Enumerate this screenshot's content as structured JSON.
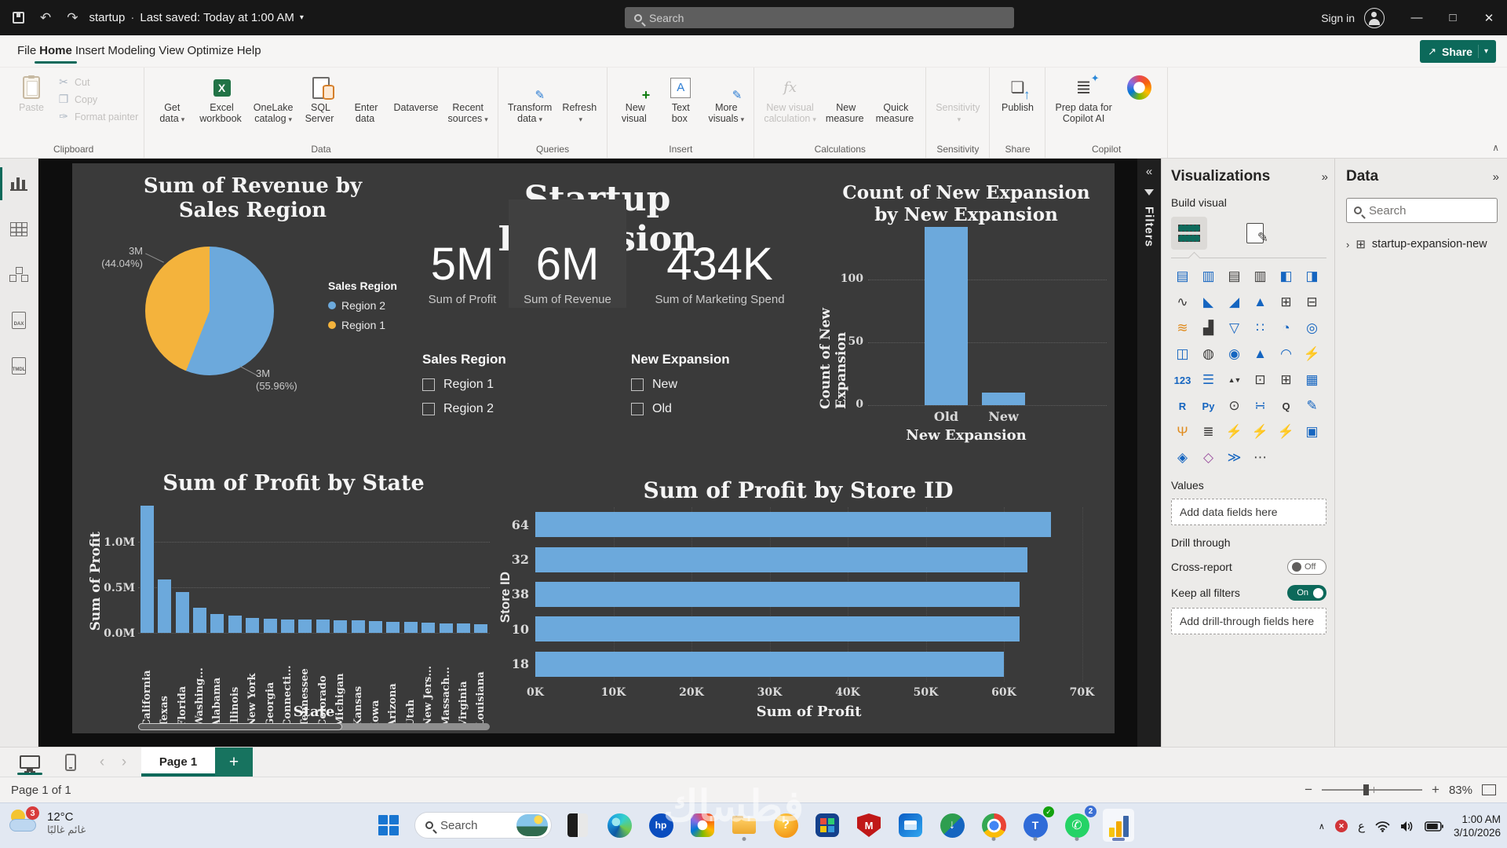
{
  "icons": {
    "undo": "↶",
    "redo": "↷",
    "caret_down": "▾",
    "minimize": "—",
    "maximize": "□",
    "close": "✕",
    "collapse_left": "«",
    "collapse_right": "»",
    "chevron_up": "∧",
    "back": "‹",
    "forward": "›",
    "share_arrow": "↗",
    "tree_chevron": "›",
    "table_glyph": "⊞",
    "tray_chevron": "∧",
    "whatsapp_phone": "✆",
    "teams_check": "✓",
    "idm_arrow": "↓",
    "question": "?",
    "hp": "hp",
    "teams_letter": "T",
    "mcafee_letter": "M",
    "plus": "+"
  },
  "titlebar": {
    "doc_title": "startup",
    "saved_status": "Last saved: Today at 1:00 AM",
    "search_placeholder": "Search",
    "sign_in": "Sign in"
  },
  "menubar": {
    "tabs": [
      {
        "t": "File",
        "a": ""
      },
      {
        "t": "Home",
        "a": "1"
      },
      {
        "t": "Insert",
        "a": ""
      },
      {
        "t": "Modeling",
        "a": ""
      },
      {
        "t": "View",
        "a": ""
      },
      {
        "t": "Optimize",
        "a": ""
      },
      {
        "t": "Help",
        "a": ""
      }
    ],
    "share_label": "Share"
  },
  "ribbon": {
    "clipboard": {
      "group_label": "Clipboard",
      "paste_label": "Paste",
      "items": [
        {
          "g": "✂",
          "label": "Cut"
        },
        {
          "g": "❐",
          "label": "Copy"
        },
        {
          "g": "✑",
          "label": "Format painter"
        }
      ]
    },
    "groups": [
      {
        "label": "Data",
        "buttons": [
          {
            "ic": "getdata",
            "g": "⛁",
            "l1": "Get",
            "l2": "data",
            "caret_g": "▾",
            "dis": ""
          },
          {
            "ic": "excel",
            "g": "",
            "l1": "Excel",
            "l2": "workbook",
            "caret_g": "",
            "dis": ""
          },
          {
            "ic": "onelake",
            "g": "◍",
            "l1": "OneLake",
            "l2": "catalog",
            "caret_g": "▾",
            "dis": ""
          },
          {
            "ic": "sql",
            "g": "",
            "l1": "SQL",
            "l2": "Server",
            "caret_g": "",
            "dis": ""
          },
          {
            "ic": "enterdata",
            "g": "⊞",
            "l1": "Enter",
            "l2": "data",
            "caret_g": "",
            "dis": ""
          },
          {
            "ic": "dataverse",
            "g": "◎",
            "l1": "Dataverse",
            "l2": "",
            "caret_g": "",
            "dis": ""
          },
          {
            "ic": "recent",
            "g": "◷",
            "l1": "Recent",
            "l2": "sources",
            "caret_g": "▾",
            "dis": ""
          }
        ]
      },
      {
        "label": "Queries",
        "buttons": [
          {
            "ic": "transform",
            "g": "▦",
            "l1": "Transform",
            "l2": "data",
            "caret_g": "▾",
            "dis": ""
          },
          {
            "ic": "refresh",
            "g": "⟳",
            "l1": "Refresh",
            "l2": "",
            "caret_g": "▾",
            "dis": ""
          }
        ]
      },
      {
        "label": "Insert",
        "buttons": [
          {
            "ic": "newvisual",
            "g": "▥",
            "l1": "New",
            "l2": "visual",
            "caret_g": "",
            "dis": ""
          },
          {
            "ic": "textbox",
            "g": "",
            "l1": "Text",
            "l2": "box",
            "caret_g": "",
            "dis": ""
          },
          {
            "ic": "morevisuals",
            "g": "▥",
            "l1": "More",
            "l2": "visuals",
            "caret_g": "▾",
            "dis": ""
          }
        ]
      },
      {
        "label": "Calculations",
        "buttons": [
          {
            "ic": "nvc",
            "g": "",
            "l1": "New visual",
            "l2": "calculation",
            "caret_g": "▾",
            "dis": "1"
          },
          {
            "ic": "newmeasure",
            "g": "",
            "l1": "New",
            "l2": "measure",
            "caret_g": "",
            "dis": ""
          },
          {
            "ic": "quickmeasure",
            "g": "",
            "l1": "Quick",
            "l2": "measure",
            "caret_g": "",
            "dis": ""
          }
        ]
      },
      {
        "label": "Sensitivity",
        "buttons": [
          {
            "ic": "sens",
            "g": "❖",
            "l1": "Sensitivity",
            "l2": "",
            "caret_g": "▾",
            "dis": "1"
          }
        ]
      },
      {
        "label": "Share",
        "buttons": [
          {
            "ic": "publish",
            "g": "",
            "l1": "Publish",
            "l2": "",
            "caret_g": "",
            "dis": ""
          }
        ]
      },
      {
        "label": "Copilot",
        "buttons": [
          {
            "ic": "prep",
            "g": "",
            "l1": "Prep data for",
            "l2": "Copilot AI",
            "caret_g": "",
            "dis": ""
          },
          {
            "ic": "copilot",
            "g": "",
            "l1": "",
            "l2": "",
            "caret_g": "",
            "dis": ""
          }
        ]
      }
    ],
    "group_labels": {
      "data": "Data",
      "queries": "Queries",
      "insert": "Insert",
      "calculations": "Calculations",
      "sensitivity": "Sensitivity",
      "share": "Share",
      "copilot": "Copilot"
    }
  },
  "viewrail": {
    "items": [
      "report-view",
      "table-view",
      "model-view",
      "dax-query-view",
      "tmdl-view"
    ],
    "dax_label": "DAX",
    "tmdl_label": "TMDL"
  },
  "report": {
    "headline": "Startup Expansion"
  },
  "chart_data": [
    {
      "id": "revenue_by_region",
      "type": "pie",
      "title": "Sum of Revenue by Sales Region",
      "legend_title": "Sales Region",
      "legend_position": "right",
      "items": [
        {
          "label": "Region 2",
          "value": "3M",
          "pct": "(55.96%)",
          "pct_num": 55.96,
          "color": "#6CA9DC"
        },
        {
          "label": "Region 1",
          "value": "3M",
          "pct": "(44.04%)",
          "pct_num": 44.04,
          "color": "#F4B33C"
        }
      ]
    },
    {
      "id": "count_new_expansion",
      "type": "bar",
      "title_l1": "Count of New Expansion",
      "title_l2": "by New Expansion",
      "ylabel": "Count of New Expansion",
      "xlabel": "New Expansion",
      "ylim": [
        0,
        150
      ],
      "yticks": [
        "100",
        "50",
        "0"
      ],
      "grid": "dotted",
      "items": [
        {
          "c": "Old",
          "v": 140
        },
        {
          "c": "New",
          "v": 10
        }
      ]
    },
    {
      "id": "profit_by_state",
      "type": "bar",
      "title": "Sum of Profit by State",
      "ylabel": "Sum of Profit",
      "xlabel": "State",
      "ylim_m": [
        0,
        1.45
      ],
      "yticks": [
        "1.0M",
        "0.5M",
        "0.0M"
      ],
      "grid": "dotted",
      "scrollbar": true,
      "items": [
        {
          "c": "California",
          "v": 1.4
        },
        {
          "c": "Texas",
          "v": 0.59
        },
        {
          "c": "Florida",
          "v": 0.45
        },
        {
          "c": "Washing...",
          "v": 0.28
        },
        {
          "c": "Alabama",
          "v": 0.21
        },
        {
          "c": "Illinois",
          "v": 0.19
        },
        {
          "c": "New York",
          "v": 0.16
        },
        {
          "c": "Georgia",
          "v": 0.155
        },
        {
          "c": "Connecti...",
          "v": 0.15
        },
        {
          "c": "Tennessee",
          "v": 0.145
        },
        {
          "c": "Colorado",
          "v": 0.143
        },
        {
          "c": "Michigan",
          "v": 0.14
        },
        {
          "c": "Kansas",
          "v": 0.135
        },
        {
          "c": "Iowa",
          "v": 0.125
        },
        {
          "c": "Arizona",
          "v": 0.122
        },
        {
          "c": "Utah",
          "v": 0.12
        },
        {
          "c": "New Jers...",
          "v": 0.112
        },
        {
          "c": "Massach...",
          "v": 0.103
        },
        {
          "c": "Virginia",
          "v": 0.1
        },
        {
          "c": "Louisiana",
          "v": 0.092
        }
      ]
    },
    {
      "id": "profit_by_store",
      "type": "bar_horizontal",
      "title": "Sum of Profit by Store ID",
      "ylabel": "Store ID",
      "xlabel": "Sum of Profit",
      "xlim": [
        0,
        70000
      ],
      "xticks": [
        "0K",
        "10K",
        "20K",
        "30K",
        "40K",
        "50K",
        "60K",
        "70K"
      ],
      "grid": "dotted",
      "items": [
        {
          "c": "64",
          "v": 66000
        },
        {
          "c": "32",
          "v": 63000
        },
        {
          "c": "38",
          "v": 62000
        },
        {
          "c": "10",
          "v": 62000
        },
        {
          "c": "18",
          "v": 60000
        }
      ]
    },
    {
      "id": "kpi_cards",
      "type": "card",
      "items": [
        {
          "v": "5M",
          "label": "Sum of Profit"
        },
        {
          "v": "6M",
          "label": "Sum of Revenue"
        },
        {
          "v": "434K",
          "label": "Sum of Marketing Spend"
        }
      ]
    }
  ],
  "slicers": [
    {
      "title": "Sales Region",
      "options": [
        "Region 1",
        "Region 2"
      ]
    },
    {
      "title": "New Expansion",
      "options": [
        "New",
        "Old"
      ]
    }
  ],
  "filters_pane": {
    "label": "Filters"
  },
  "viz_pane": {
    "title": "Visualizations",
    "build_visual": "Build visual",
    "values_label": "Values",
    "add_data": "Add data fields here",
    "drill_through": "Drill through",
    "cross_report": "Cross-report",
    "off": "Off",
    "keep_all_filters": "Keep all filters",
    "on": "On",
    "add_drill": "Add drill-through fields here",
    "gallery": [
      {
        "n": "stacked-bar-chart",
        "g": "▤",
        "c": "b"
      },
      {
        "n": "stacked-column-chart",
        "g": "▥",
        "c": "b"
      },
      {
        "n": "clustered-bar-chart",
        "g": "▤",
        "c": "d"
      },
      {
        "n": "clustered-column-chart",
        "g": "▥",
        "c": "d"
      },
      {
        "n": "hundred-stacked-bar-chart",
        "g": "◧",
        "c": "b"
      },
      {
        "n": "hundred-stacked-column-chart",
        "g": "◨",
        "c": "b"
      },
      {
        "n": "line-chart",
        "g": "∿",
        "c": "d"
      },
      {
        "n": "area-chart",
        "g": "◣",
        "c": "b"
      },
      {
        "n": "stacked-area-chart",
        "g": "◢",
        "c": "b"
      },
      {
        "n": "hundred-stacked-area-chart",
        "g": "▲",
        "c": "b"
      },
      {
        "n": "line-and-stacked-column-chart",
        "g": "⊞",
        "c": "d"
      },
      {
        "n": "line-and-clustered-column-chart",
        "g": "⊟",
        "c": "d"
      },
      {
        "n": "ribbon-chart",
        "g": "≋",
        "c": "o"
      },
      {
        "n": "waterfall-chart",
        "g": "▟",
        "c": "d"
      },
      {
        "n": "funnel-chart",
        "g": "▽",
        "c": "b"
      },
      {
        "n": "scatter-chart",
        "g": "∷",
        "c": "b"
      },
      {
        "n": "pie-chart",
        "g": "◔",
        "c": "b"
      },
      {
        "n": "donut-chart",
        "g": "◎",
        "c": "b"
      },
      {
        "n": "treemap",
        "g": "◫",
        "c": "b"
      },
      {
        "n": "map",
        "g": "◍",
        "c": "d"
      },
      {
        "n": "filled-map",
        "g": "◉",
        "c": "b"
      },
      {
        "n": "azure-map",
        "g": "▲",
        "c": "b"
      },
      {
        "n": "gauge",
        "g": "◠",
        "c": "b"
      },
      {
        "n": "power-kpi",
        "g": "⚡",
        "c": "o"
      },
      {
        "n": "card",
        "g": "123",
        "c": "b"
      },
      {
        "n": "multi-row-card",
        "g": "☰",
        "c": "b"
      },
      {
        "n": "kpi",
        "g": "▲▼",
        "c": "d"
      },
      {
        "n": "slicer",
        "g": "⊡",
        "c": "d"
      },
      {
        "n": "table",
        "g": "⊞",
        "c": "d"
      },
      {
        "n": "matrix",
        "g": "▦",
        "c": "b"
      },
      {
        "n": "r-script-visual",
        "g": "R",
        "c": "b"
      },
      {
        "n": "python-visual",
        "g": "Py",
        "c": "b"
      },
      {
        "n": "numeric-range-slicer",
        "g": "⊙",
        "c": "d"
      },
      {
        "n": "decomposition-tree",
        "g": "∺",
        "c": "b"
      },
      {
        "n": "qa-visual",
        "g": "Q",
        "c": "d"
      },
      {
        "n": "smart-narrative",
        "g": "✎",
        "c": "b"
      },
      {
        "n": "metrics",
        "g": "Ψ",
        "c": "o"
      },
      {
        "n": "paginated-report",
        "g": "≣",
        "c": "d"
      },
      {
        "n": "power-apps-visual",
        "g": "⚡",
        "c": "o"
      },
      {
        "n": "power-automate-visual",
        "g": "⚡",
        "c": "o"
      },
      {
        "n": "quick-report",
        "g": "⚡",
        "c": "o"
      },
      {
        "n": "image",
        "g": "▣",
        "c": "b"
      },
      {
        "n": "arcgis-map",
        "g": "◈",
        "c": "b"
      },
      {
        "n": "custom-visual",
        "g": "◇",
        "c": "p"
      },
      {
        "n": "power-automate",
        "g": "≫",
        "c": "b"
      },
      {
        "n": "get-more-visuals",
        "g": "⋯",
        "c": "d"
      }
    ]
  },
  "data_pane": {
    "title": "Data",
    "search_placeholder": "Search",
    "table_name": "startup-expansion-new"
  },
  "pagebar": {
    "page_tab": "Page 1"
  },
  "statusbar": {
    "page_info": "Page 1 of 1",
    "zoom_pct": "83%",
    "zoom_minus": "−",
    "zoom_plus": "+"
  },
  "taskbar": {
    "weather": {
      "temp": "12°C",
      "desc": "غائم غالبًا",
      "badge": "3"
    },
    "search_placeholder": "Search",
    "whatsapp_badge": "2",
    "lang": "ع",
    "clock": {
      "time": "1:00 AM",
      "date": "3/10/2026"
    }
  },
  "watermark": "فطساك"
}
